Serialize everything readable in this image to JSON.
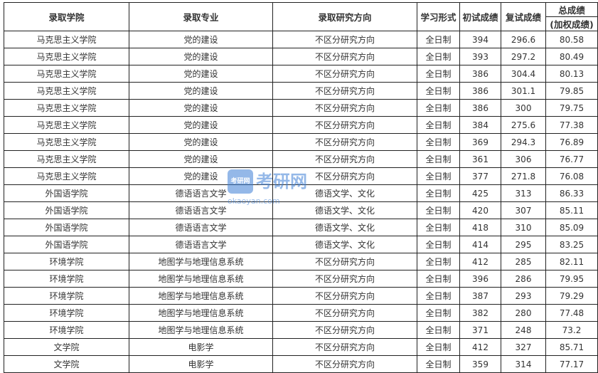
{
  "headers": [
    "录取学院",
    "录取专业",
    "录取研究方向",
    "学习形式",
    "初试成绩",
    "复试成绩",
    "总成绩",
    "(加权成绩)"
  ],
  "rows": [
    [
      "马克思主义学院",
      "党的建设",
      "不区分研究方向",
      "全日制",
      "394",
      "296.6",
      "80.58"
    ],
    [
      "马克思主义学院",
      "党的建设",
      "不区分研究方向",
      "全日制",
      "393",
      "297.2",
      "80.49"
    ],
    [
      "马克思主义学院",
      "党的建设",
      "不区分研究方向",
      "全日制",
      "386",
      "304.4",
      "80.13"
    ],
    [
      "马克思主义学院",
      "党的建设",
      "不区分研究方向",
      "全日制",
      "386",
      "301.1",
      "79.85"
    ],
    [
      "马克思主义学院",
      "党的建设",
      "不区分研究方向",
      "全日制",
      "386",
      "300",
      "79.75"
    ],
    [
      "马克思主义学院",
      "党的建设",
      "不区分研究方向",
      "全日制",
      "384",
      "275.6",
      "77.38"
    ],
    [
      "马克思主义学院",
      "党的建设",
      "不区分研究方向",
      "全日制",
      "369",
      "294.3",
      "76.89"
    ],
    [
      "马克思主义学院",
      "党的建设",
      "不区分研究方向",
      "全日制",
      "361",
      "306",
      "76.77"
    ],
    [
      "马克思主义学院",
      "党的建设",
      "不区分研究方向",
      "全日制",
      "377",
      "271.8",
      "76.08"
    ],
    [
      "外国语学院",
      "德语语言文学",
      "德语文学、文化",
      "全日制",
      "425",
      "313",
      "86.33"
    ],
    [
      "外国语学院",
      "德语语言文学",
      "德语文学、文化",
      "全日制",
      "420",
      "307",
      "85.11"
    ],
    [
      "外国语学院",
      "德语语言文学",
      "德语文学、文化",
      "全日制",
      "418",
      "310",
      "85.09"
    ],
    [
      "外国语学院",
      "德语语言文学",
      "德语文学、文化",
      "全日制",
      "414",
      "295",
      "83.25"
    ],
    [
      "环境学院",
      "地图学与地理信息系统",
      "不区分研究方向",
      "全日制",
      "412",
      "285",
      "82.11"
    ],
    [
      "环境学院",
      "地图学与地理信息系统",
      "不区分研究方向",
      "全日制",
      "396",
      "286",
      "79.95"
    ],
    [
      "环境学院",
      "地图学与地理信息系统",
      "不区分研究方向",
      "全日制",
      "387",
      "293",
      "79.29"
    ],
    [
      "环境学院",
      "地图学与地理信息系统",
      "不区分研究方向",
      "全日制",
      "382",
      "280",
      "77.48"
    ],
    [
      "环境学院",
      "地图学与地理信息系统",
      "不区分研究方向",
      "全日制",
      "371",
      "248",
      "73.2"
    ],
    [
      "文学院",
      "电影学",
      "不区分研究方向",
      "全日制",
      "412",
      "327",
      "85.71"
    ],
    [
      "文学院",
      "电影学",
      "不区分研究方向",
      "全日制",
      "359",
      "314",
      "77.17"
    ]
  ],
  "watermark": {
    "logo": "考研网",
    "text": "考研网",
    "url": "okaoyan.com"
  }
}
